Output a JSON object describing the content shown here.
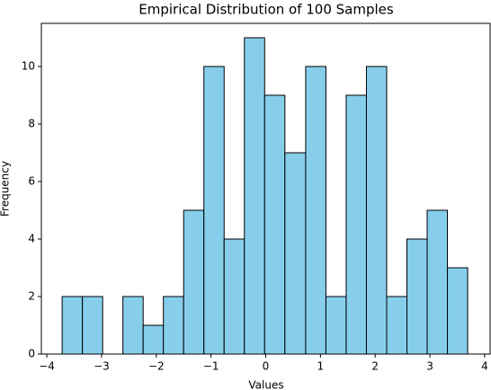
{
  "chart_data": {
    "type": "histogram",
    "title": "Empirical Distribution of 100 Samples",
    "x_label": "Values",
    "y_label": "Frequency",
    "bins": [
      -3.72,
      -3.35,
      -2.98,
      -2.61,
      -2.24,
      -1.87,
      -1.5,
      -1.13,
      -0.76,
      -0.39,
      -0.02,
      0.35,
      0.73,
      1.1,
      1.47,
      1.84,
      2.21,
      2.58,
      2.95,
      3.32,
      3.69
    ],
    "values": [
      2,
      2,
      0,
      2,
      1,
      2,
      5,
      10,
      4,
      11,
      9,
      7,
      10,
      2,
      9,
      10,
      2,
      4,
      5,
      3
    ],
    "color": "#87ceeb",
    "edgecolor": "#000000",
    "xlim": [
      -4.1,
      4.1
    ],
    "xticks": [
      {
        "value": -4,
        "label": "−4"
      },
      {
        "value": -3,
        "label": "−3"
      },
      {
        "value": -2,
        "label": "−2"
      },
      {
        "value": -1,
        "label": "−1"
      },
      0,
      1,
      2,
      3,
      4
    ],
    "ylim": [
      0,
      11.5
    ],
    "yticks": [
      0,
      2,
      4,
      6,
      8,
      10
    ],
    "grid": false
  }
}
